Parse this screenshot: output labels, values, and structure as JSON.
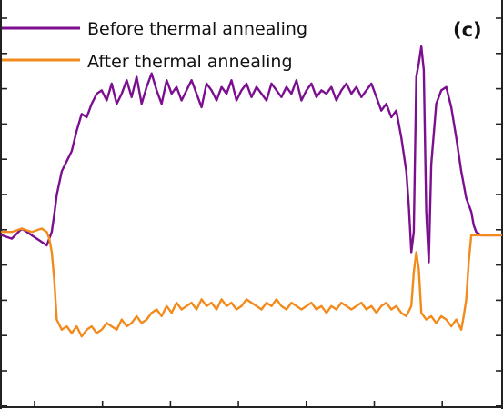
{
  "chart_data": {
    "type": "line",
    "title": "",
    "xlabel": "",
    "ylabel": "",
    "panel_label": "(c)",
    "xlim": [
      0,
      100
    ],
    "ylim": [
      0,
      100
    ],
    "grid": false,
    "legend_position": "top-left",
    "series": [
      {
        "name": "Before thermal annealing",
        "color": "#7b0f8f",
        "x": [
          0,
          2,
          4,
          6,
          8,
          9,
          10,
          10.5,
          11,
          12,
          13,
          14,
          15,
          16,
          17,
          18,
          19,
          20,
          21,
          22,
          23,
          24,
          25,
          26,
          27,
          28,
          29,
          30,
          31,
          32,
          33,
          34,
          35,
          36,
          37,
          38,
          39,
          40,
          41,
          42,
          43,
          44,
          45,
          46,
          47,
          48,
          49,
          50,
          51,
          52,
          53,
          54,
          55,
          56,
          57,
          58,
          59,
          60,
          61,
          62,
          63,
          64,
          65,
          66,
          67,
          68,
          69,
          70,
          71,
          72,
          73,
          74,
          75,
          76,
          77,
          78,
          79,
          80,
          81,
          81.5,
          82,
          82.5,
          83,
          83.5,
          84,
          84.5,
          85,
          85.5,
          86,
          87,
          88,
          89,
          90,
          91,
          92,
          93,
          94,
          94.5,
          95,
          96,
          97,
          98,
          99,
          100
        ],
        "y": [
          41,
          40,
          43,
          41,
          39,
          38,
          42,
          47,
          53,
          60,
          63,
          66,
          72,
          77,
          76,
          80,
          83,
          84,
          81,
          86,
          80,
          83,
          87,
          82,
          88,
          80,
          85,
          89,
          84,
          80,
          87,
          83,
          85,
          81,
          84,
          87,
          83,
          79,
          86,
          84,
          81,
          85,
          83,
          87,
          81,
          84,
          86,
          82,
          85,
          83,
          81,
          86,
          84,
          82,
          85,
          83,
          87,
          81,
          84,
          86,
          82,
          84,
          83,
          85,
          81,
          84,
          86,
          83,
          85,
          82,
          84,
          86,
          82,
          78,
          80,
          76,
          78,
          70,
          60,
          50,
          36,
          42,
          88,
          92,
          97,
          90,
          48,
          33,
          62,
          80,
          84,
          85,
          79,
          70,
          60,
          52,
          48,
          44,
          42,
          41,
          41,
          41,
          41,
          41
        ]
      },
      {
        "name": "After thermal annealing",
        "color": "#f28a1c",
        "x": [
          0,
          2,
          4,
          6,
          8,
          9,
          9.5,
          10,
          10.5,
          11,
          12,
          13,
          14,
          15,
          16,
          17,
          18,
          19,
          20,
          21,
          22,
          23,
          24,
          25,
          26,
          27,
          28,
          29,
          30,
          31,
          32,
          33,
          34,
          35,
          36,
          37,
          38,
          39,
          40,
          41,
          42,
          43,
          44,
          45,
          46,
          47,
          48,
          49,
          50,
          51,
          52,
          53,
          54,
          55,
          56,
          57,
          58,
          59,
          60,
          61,
          62,
          63,
          64,
          65,
          66,
          67,
          68,
          69,
          70,
          71,
          72,
          73,
          74,
          75,
          76,
          77,
          78,
          79,
          80,
          81,
          82,
          82.5,
          83,
          83.5,
          84,
          85,
          86,
          87,
          88,
          89,
          90,
          91,
          92,
          92.5,
          93,
          93.5,
          94,
          95,
          96,
          97,
          98,
          99,
          100
        ],
        "y": [
          42,
          42,
          43,
          42,
          43,
          42,
          40,
          36,
          28,
          16,
          13,
          14,
          12,
          14,
          11,
          13,
          14,
          12,
          13,
          15,
          14,
          13,
          16,
          14,
          15,
          17,
          15,
          16,
          18,
          19,
          17,
          20,
          18,
          21,
          19,
          20,
          21,
          19,
          22,
          20,
          21,
          19,
          22,
          20,
          21,
          19,
          20,
          22,
          21,
          20,
          19,
          21,
          20,
          22,
          20,
          19,
          21,
          20,
          19,
          20,
          21,
          19,
          20,
          18,
          20,
          19,
          21,
          20,
          19,
          20,
          21,
          19,
          20,
          18,
          20,
          21,
          19,
          20,
          18,
          17,
          20,
          30,
          36,
          31,
          18,
          16,
          17,
          15,
          17,
          16,
          14,
          16,
          13,
          17,
          22,
          33,
          41,
          41,
          41,
          41,
          41,
          41,
          41
        ]
      }
    ]
  }
}
